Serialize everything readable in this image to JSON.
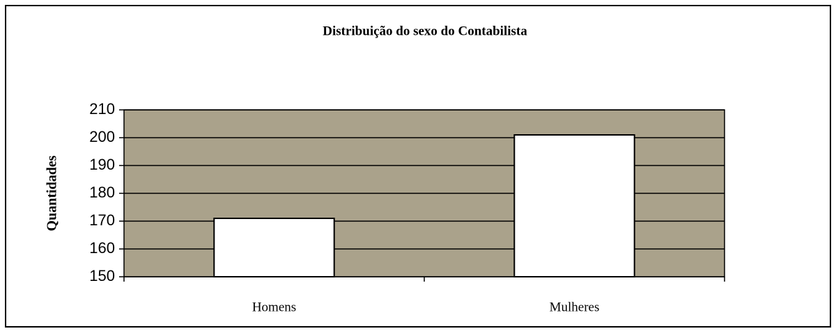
{
  "chart_data": {
    "type": "bar",
    "title": "Distribuição do sexo do Contabilista",
    "y_label": "Quantidades",
    "categories": [
      "Homens",
      "Mulheres"
    ],
    "values": [
      171,
      201
    ],
    "color": "#ffffff",
    "plot_background": "#aaa28b",
    "ylim": [
      150,
      210
    ],
    "yticks": [
      150,
      160,
      170,
      180,
      190,
      200,
      210
    ],
    "grid": true
  }
}
